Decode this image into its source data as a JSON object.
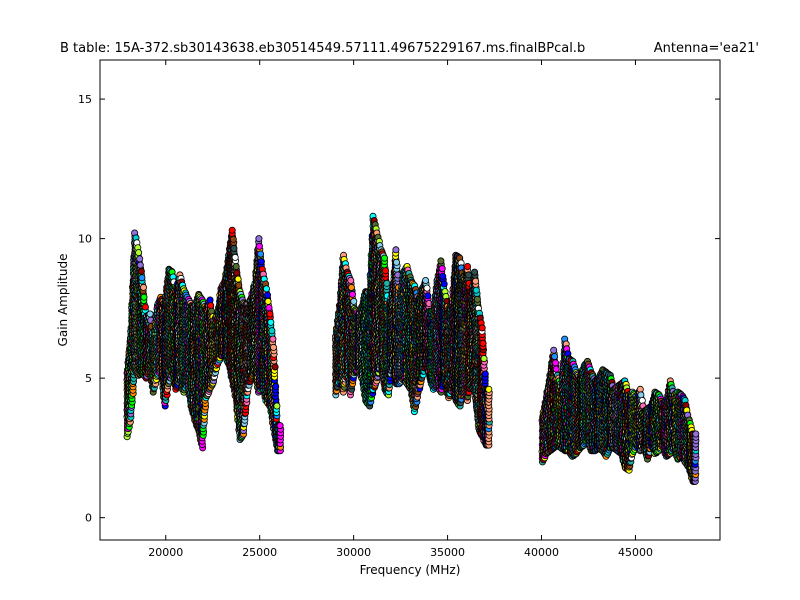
{
  "chart_data": {
    "type": "scatter",
    "title": "B table: 15A-372.sb30143638.eb30514549.57111.49675229167.ms.finalBPcal.b",
    "subtitle": "Antenna='ea21'",
    "xlabel": "Frequency (MHz)",
    "ylabel": "Gain Amplitude",
    "xlim": [
      16500,
      49500
    ],
    "ylim": [
      -0.8,
      16.4
    ],
    "xticks": [
      20000,
      25000,
      30000,
      35000,
      40000,
      45000
    ],
    "xtick_labels": [
      "20000",
      "25000",
      "30000",
      "35000",
      "40000",
      "45000"
    ],
    "yticks": [
      0,
      5,
      10,
      15
    ],
    "ytick_labels": [
      "0",
      "5",
      "10",
      "15"
    ],
    "grid": false,
    "marker": "circle",
    "marker_edge_color": "#000000",
    "series_colors": [
      "#00ffff",
      "#ff8c00",
      "#ff00ff",
      "#00ff00",
      "#0000ff",
      "#ff0000",
      "#ffff00",
      "#8b4513",
      "#9370db",
      "#20b2aa",
      "#ffa07a",
      "#2f4f4f",
      "#00ced1",
      "#adff2f",
      "#ff69b4",
      "#ffffff",
      "#1e90ff",
      "#556b2f",
      "#8b0000",
      "#87ceeb"
    ],
    "series": [
      {
        "band": "low",
        "x": [
          17950,
          18150,
          18350,
          18550,
          18750,
          18950,
          19150,
          19350,
          19550,
          19750,
          19950,
          20150,
          20350,
          20550,
          20750,
          20950,
          21150,
          21350,
          21550,
          21750,
          21950,
          22150,
          22350,
          22550,
          22750,
          22950,
          23150,
          23350,
          23550,
          23750,
          23950,
          24150,
          24350,
          24550,
          24750,
          24950,
          25150,
          25350,
          25550,
          25750,
          25950
        ],
        "y_min": [
          2.9,
          3.6,
          5.3,
          5.1,
          5.2,
          5.0,
          5.3,
          4.5,
          5.1,
          5.3,
          4.0,
          4.8,
          5.2,
          4.6,
          4.9,
          4.5,
          4.8,
          4.0,
          3.5,
          3.1,
          2.5,
          4.3,
          4.6,
          4.9,
          5.5,
          5.8,
          5.8,
          5.5,
          4.9,
          4.2,
          2.8,
          3.0,
          4.5,
          5.0,
          5.2,
          4.5,
          4.7,
          4.2,
          4.0,
          3.2,
          2.4
        ],
        "y_max": [
          5.3,
          6.8,
          10.2,
          9.5,
          8.6,
          7.2,
          7.3,
          6.4,
          7.6,
          7.9,
          7.6,
          8.9,
          8.8,
          8.1,
          8.7,
          8.2,
          7.9,
          7.6,
          7.5,
          8.0,
          7.8,
          7.5,
          7.8,
          7.0,
          7.3,
          8.2,
          8.5,
          9.4,
          10.3,
          9.0,
          8.1,
          7.7,
          7.6,
          7.9,
          8.4,
          10.0,
          8.9,
          8.2,
          7.3,
          6.1,
          3.3
        ]
      },
      {
        "band": "mid",
        "x": [
          29050,
          29250,
          29450,
          29650,
          29850,
          30050,
          30250,
          30450,
          30650,
          30850,
          31050,
          31250,
          31450,
          31650,
          31850,
          32050,
          32250,
          32450,
          32650,
          32850,
          33050,
          33250,
          33450,
          33650,
          33850,
          34050,
          34250,
          34450,
          34650,
          34850,
          35050,
          35250,
          35450,
          35650,
          35850,
          36050,
          36250,
          36450,
          36650,
          36850,
          37050
        ],
        "y_min": [
          4.4,
          5.0,
          4.5,
          5.2,
          4.4,
          5.2,
          5.3,
          5.0,
          4.2,
          4.0,
          4.6,
          4.9,
          5.5,
          4.6,
          4.4,
          5.4,
          4.8,
          4.8,
          5.0,
          4.8,
          4.6,
          3.8,
          4.5,
          5.0,
          5.5,
          5.0,
          4.6,
          4.8,
          4.5,
          4.9,
          4.3,
          4.6,
          4.2,
          4.0,
          4.5,
          4.2,
          4.8,
          4.5,
          3.2,
          2.9,
          2.6
        ],
        "y_max": [
          6.5,
          7.6,
          9.4,
          8.8,
          8.5,
          7.5,
          7.3,
          7.6,
          8.1,
          8.0,
          10.8,
          10.2,
          9.6,
          9.3,
          7.5,
          8.0,
          9.6,
          7.8,
          8.8,
          9.0,
          8.5,
          8.3,
          7.8,
          8.2,
          8.5,
          7.4,
          7.4,
          8.5,
          9.2,
          8.1,
          7.4,
          7.8,
          9.4,
          9.3,
          8.6,
          9.0,
          7.8,
          8.8,
          7.5,
          6.8,
          4.6
        ]
      },
      {
        "band": "high",
        "x": [
          40050,
          40250,
          40450,
          40650,
          40850,
          41050,
          41250,
          41450,
          41650,
          41850,
          42050,
          42250,
          42450,
          42650,
          42850,
          43050,
          43250,
          43450,
          43650,
          43850,
          44050,
          44250,
          44450,
          44650,
          44850,
          45050,
          45250,
          45450,
          45650,
          45850,
          46050,
          46250,
          46450,
          46650,
          46850,
          47050,
          47250,
          47450,
          47650,
          47850,
          48050
        ],
        "y_min": [
          2.0,
          2.3,
          2.4,
          2.5,
          2.6,
          2.5,
          2.4,
          2.4,
          2.2,
          2.3,
          2.5,
          2.6,
          2.8,
          2.4,
          2.4,
          2.5,
          2.4,
          2.2,
          2.5,
          2.5,
          2.4,
          2.3,
          1.8,
          1.7,
          2.3,
          2.6,
          2.4,
          2.5,
          2.1,
          2.6,
          2.3,
          2.4,
          2.6,
          2.2,
          2.3,
          2.5,
          2.1,
          2.2,
          2.0,
          1.8,
          1.3
        ],
        "y_max": [
          3.6,
          4.3,
          5.1,
          6.0,
          5.1,
          4.7,
          6.4,
          5.7,
          5.6,
          5.2,
          5.0,
          5.4,
          5.6,
          5.2,
          4.9,
          5.0,
          5.3,
          5.2,
          5.1,
          4.6,
          4.7,
          4.8,
          4.9,
          4.4,
          4.5,
          4.3,
          4.6,
          3.8,
          3.9,
          4.0,
          4.5,
          4.4,
          4.1,
          4.2,
          4.9,
          4.4,
          4.5,
          4.4,
          4.2,
          3.5,
          3.0
        ]
      }
    ]
  }
}
